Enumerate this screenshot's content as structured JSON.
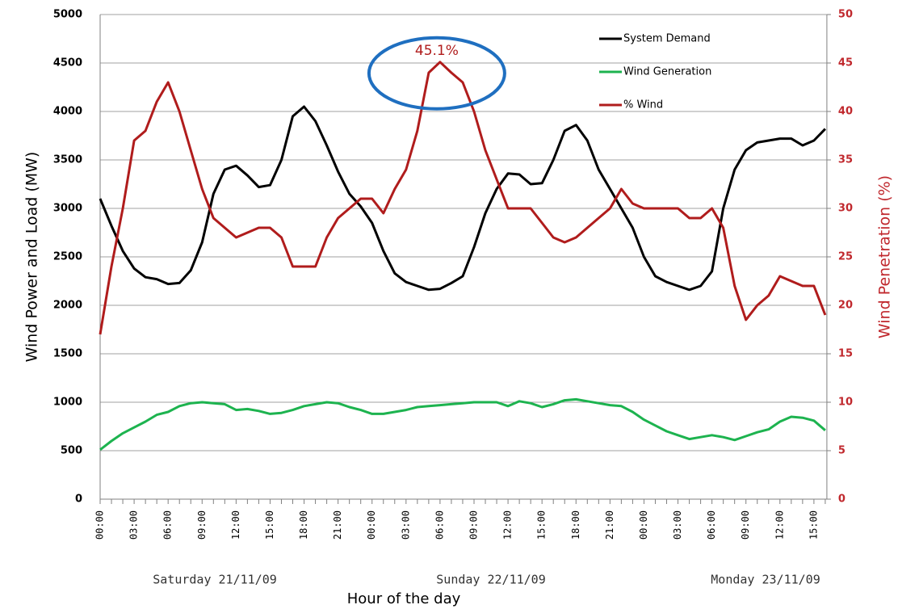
{
  "chart_data": {
    "type": "line",
    "y_label": "Wind Power and Load (MW)",
    "y2_label": "Wind Penetration (%)",
    "x_label": "Hour of the day",
    "day_labels": [
      "Saturday  21/11/09",
      "Sunday  22/11/09",
      "Monday  23/11/09"
    ],
    "annotation": "45.1%",
    "categories": [
      "00:00",
      null,
      null,
      "03:00",
      null,
      null,
      "06:00",
      null,
      null,
      "09:00",
      null,
      null,
      "12:00",
      null,
      null,
      "15:00",
      null,
      null,
      "18:00",
      null,
      null,
      "21:00",
      null,
      null,
      "00:00",
      null,
      null,
      "03:00",
      null,
      null,
      "06:00",
      null,
      null,
      "09:00",
      null,
      null,
      "12:00",
      null,
      null,
      "15:00",
      null,
      null,
      "18:00",
      null,
      null,
      "21:00",
      null,
      null,
      "00:00",
      null,
      null,
      "03:00",
      null,
      null,
      "06:00",
      null,
      null,
      "09:00",
      null,
      null,
      "12:00",
      null,
      null,
      "15:00",
      null
    ],
    "ylim": [
      0,
      5000
    ],
    "yticks": [
      0,
      500,
      1000,
      1500,
      2000,
      2500,
      3000,
      3500,
      4000,
      4500,
      5000
    ],
    "y2lim": [
      0,
      50
    ],
    "y2ticks": [
      0,
      5,
      10,
      15,
      20,
      25,
      30,
      35,
      40,
      45,
      50
    ],
    "grid": true,
    "legend": "upper right",
    "series": [
      {
        "name": "System Demand",
        "color": "#000000",
        "values": [
          3100,
          2820,
          2560,
          2380,
          2290,
          2270,
          2220,
          2230,
          2360,
          2650,
          3150,
          3400,
          3440,
          3340,
          3220,
          3240,
          3500,
          3950,
          4050,
          3900,
          3650,
          3380,
          3150,
          3020,
          2850,
          2560,
          2330,
          2240,
          2200,
          2160,
          2170,
          2230,
          2300,
          2600,
          2950,
          3200,
          3360,
          3350,
          3250,
          3260,
          3500,
          3800,
          3860,
          3700,
          3400,
          3200,
          3000,
          2800,
          2500,
          2300,
          2240,
          2200,
          2160,
          2200,
          2350,
          3000,
          3400,
          3600,
          3680,
          3700,
          3720,
          3720,
          3650,
          3700,
          3820
        ]
      },
      {
        "name": "Wind Generation",
        "color": "#1db34f",
        "values": [
          510,
          600,
          680,
          740,
          800,
          870,
          900,
          960,
          990,
          1000,
          990,
          980,
          920,
          930,
          910,
          880,
          890,
          920,
          960,
          980,
          1000,
          990,
          950,
          920,
          880,
          880,
          900,
          920,
          950,
          960,
          970,
          980,
          990,
          1000,
          1000,
          1000,
          960,
          1010,
          990,
          950,
          980,
          1020,
          1030,
          1010,
          990,
          970,
          960,
          900,
          820,
          760,
          700,
          660,
          620,
          640,
          660,
          640,
          610,
          650,
          690,
          720,
          800,
          850,
          840,
          810,
          710
        ]
      },
      {
        "name": "% Wind",
        "color": "#b01c1c",
        "axis": "y2",
        "values": [
          17,
          24,
          30,
          37,
          38,
          41,
          43,
          40,
          36,
          32,
          29,
          28,
          27,
          27.5,
          28,
          28,
          27,
          24,
          24,
          24,
          27,
          29,
          30,
          31,
          31,
          29.5,
          32,
          34,
          38,
          44,
          45.1,
          44,
          43,
          40,
          36,
          33,
          30,
          30,
          30,
          28.5,
          27,
          26.5,
          27,
          28,
          29,
          30,
          32,
          30.5,
          30,
          30,
          30,
          30,
          29,
          29,
          30,
          28,
          22,
          18.5,
          20,
          21,
          23,
          22.5,
          22,
          22,
          19
        ]
      }
    ]
  }
}
